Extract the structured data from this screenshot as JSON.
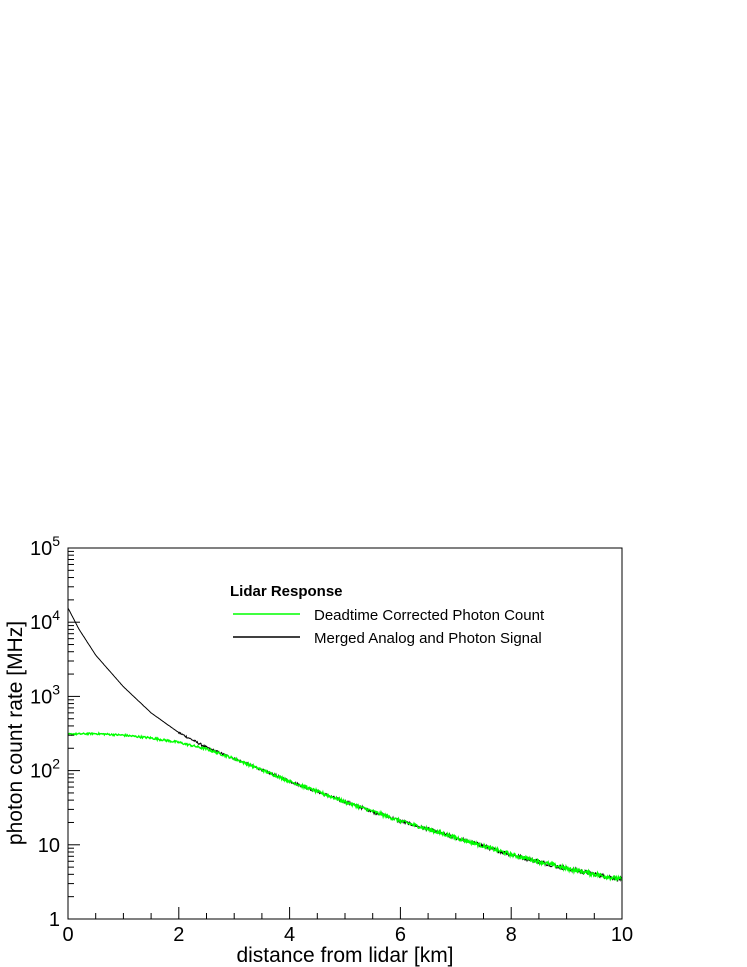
{
  "chart_data": {
    "type": "line",
    "title": "",
    "xlabel": "distance from lidar [km]",
    "ylabel": "photon count rate [MHz]",
    "xlim": [
      0,
      10
    ],
    "ylim": [
      1,
      100000
    ],
    "yscale": "log",
    "grid": false,
    "x_ticks": [
      {
        "value": 0,
        "label": "0"
      },
      {
        "value": 2,
        "label": "2"
      },
      {
        "value": 4,
        "label": "4"
      },
      {
        "value": 6,
        "label": "6"
      },
      {
        "value": 8,
        "label": "8"
      },
      {
        "value": 10,
        "label": "10"
      }
    ],
    "y_ticks": [
      {
        "value": 1,
        "base": "1",
        "exp": ""
      },
      {
        "value": 10,
        "base": "10",
        "exp": ""
      },
      {
        "value": 100,
        "base": "10",
        "exp": "2"
      },
      {
        "value": 1000,
        "base": "10",
        "exp": "3"
      },
      {
        "value": 10000,
        "base": "10",
        "exp": "4"
      },
      {
        "value": 100000,
        "base": "10",
        "exp": "5"
      }
    ],
    "legend": {
      "title": "Lidar Response",
      "placement": "top-center"
    },
    "series": [
      {
        "name": "Merged Analog and Photon Signal",
        "color": "#000000",
        "x": [
          0,
          0.2,
          0.5,
          1.0,
          1.5,
          2.0,
          2.5,
          3.0,
          4.0,
          5.0,
          6.0,
          7.0,
          8.0,
          9.0,
          10.0
        ],
        "y": [
          15500,
          8000,
          3600,
          1350,
          600,
          325,
          205,
          145,
          72,
          38,
          21,
          12.5,
          7.4,
          4.8,
          3.4
        ]
      },
      {
        "name": "Deadtime Corrected Photon Count",
        "color": "#00ff00",
        "x": [
          0,
          0.5,
          1.0,
          1.5,
          2.0,
          2.5,
          3.0,
          4.0,
          5.0,
          6.0,
          7.0,
          8.0,
          9.0,
          10.0
        ],
        "y": [
          310,
          315,
          300,
          275,
          240,
          195,
          145,
          72,
          38,
          21,
          12.5,
          7.4,
          4.8,
          3.4
        ]
      }
    ]
  }
}
